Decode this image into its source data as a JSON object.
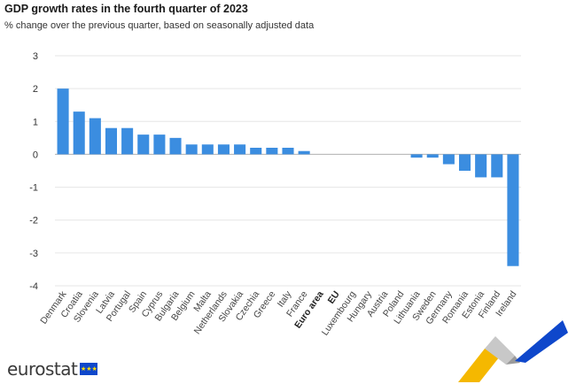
{
  "header": {
    "title": "GDP growth rates in the fourth quarter of 2023",
    "subtitle": "% change over the previous quarter, based on seasonally adjusted data"
  },
  "logo": {
    "text": "eurostat",
    "icon": "eu-flag-icon"
  },
  "chart_data": {
    "type": "bar",
    "title": "GDP growth rates in the fourth quarter of 2023",
    "subtitle": "% change over the previous quarter, based on seasonally adjusted data",
    "xlabel": "",
    "ylabel": "",
    "ylim": [
      -4,
      3
    ],
    "yticks": [
      3,
      2,
      1,
      0,
      -1,
      -2,
      -3,
      -4
    ],
    "grid": true,
    "legend": "none",
    "bar_color": "#3b8de0",
    "categories": [
      "Denmark",
      "Croatia",
      "Slovenia",
      "Latvia",
      "Portugal",
      "Spain",
      "Cyprus",
      "Bulgaria",
      "Belgium",
      "Malta",
      "Netherlands",
      "Slovakia",
      "Czechia",
      "Greece",
      "Italy",
      "France",
      "Euro area",
      "EU",
      "Luxembourg",
      "Hungary",
      "Austria",
      "Poland",
      "Lithuania",
      "Sweden",
      "Germany",
      "Romania",
      "Estonia",
      "Finland",
      "Ireland"
    ],
    "bold_categories": [
      "Euro area",
      "EU"
    ],
    "values": [
      2.0,
      1.3,
      1.1,
      0.8,
      0.8,
      0.6,
      0.6,
      0.5,
      0.3,
      0.3,
      0.3,
      0.3,
      0.2,
      0.2,
      0.2,
      0.1,
      0.0,
      0.0,
      0.0,
      0.0,
      0.0,
      0.0,
      -0.1,
      -0.1,
      -0.3,
      -0.5,
      -0.7,
      -0.7,
      -3.4
    ]
  }
}
